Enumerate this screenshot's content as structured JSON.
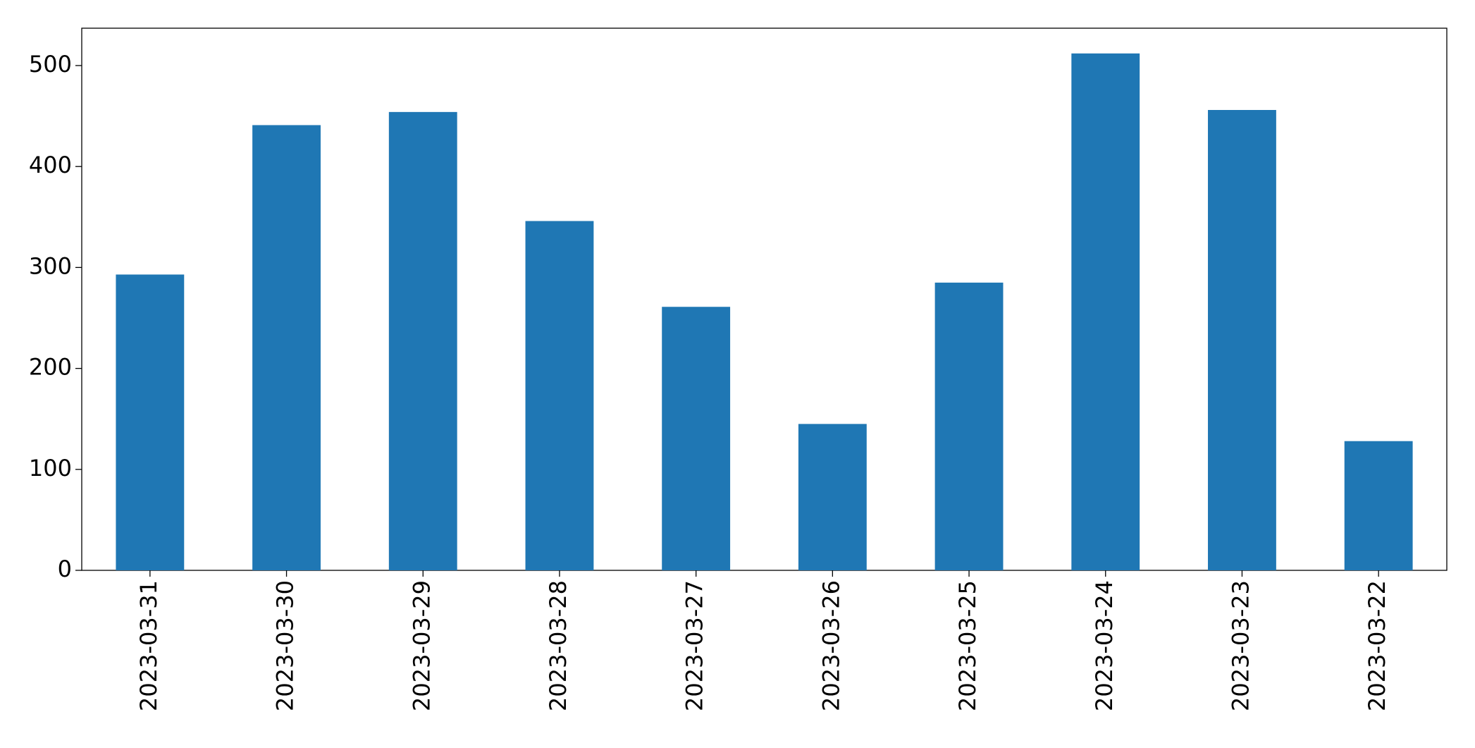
{
  "chart_data": {
    "type": "bar",
    "categories": [
      "2023-03-31",
      "2023-03-30",
      "2023-03-29",
      "2023-03-28",
      "2023-03-27",
      "2023-03-26",
      "2023-03-25",
      "2023-03-24",
      "2023-03-23",
      "2023-03-22"
    ],
    "values": [
      293,
      441,
      454,
      346,
      261,
      145,
      285,
      512,
      456,
      128
    ],
    "color": "#1f77b4",
    "ylim": [
      0,
      537
    ],
    "yticks": [
      0,
      100,
      200,
      300,
      400,
      500
    ],
    "grid": false
  }
}
